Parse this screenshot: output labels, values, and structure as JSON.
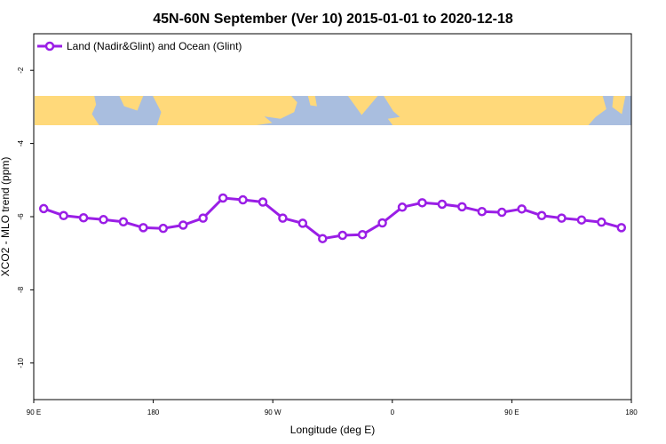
{
  "chart_data": {
    "type": "line",
    "title": "45N-60N September (Ver 10)   2015-01-01 to 2020-12-18",
    "xlabel": "Longitude (deg E)",
    "ylabel": "XCO2 - MLO trend (ppm)",
    "x_ticks": [
      {
        "value": 90,
        "label": "90 E"
      },
      {
        "value": 180,
        "label": "180"
      },
      {
        "value": 270,
        "label": "90 W"
      },
      {
        "value": 360,
        "label": "0"
      },
      {
        "value": 450,
        "label": "90 E"
      },
      {
        "value": 540,
        "label": "180"
      }
    ],
    "y_ticks": [
      {
        "value": -2,
        "label": "-2"
      },
      {
        "value": -4,
        "label": "-4"
      },
      {
        "value": -6,
        "label": "-6"
      },
      {
        "value": -8,
        "label": "-8"
      },
      {
        "value": -10,
        "label": "-10"
      }
    ],
    "xlim": [
      90,
      540
    ],
    "ylim": [
      -11,
      -1
    ],
    "grid": false,
    "legend_position": "top-left",
    "map_band": {
      "y_range": [
        -2.7,
        -3.5
      ],
      "land_color": "#ffd97a",
      "ocean_color": "#a9bedf"
    },
    "series": [
      {
        "name": "Land (Nadir&Glint) and Ocean (Glint)",
        "color": "#9a1ee6",
        "x": [
          97.5,
          112.5,
          127.5,
          142.5,
          157.5,
          172.5,
          187.5,
          202.5,
          217.5,
          232.5,
          247.5,
          262.5,
          277.5,
          292.5,
          307.5,
          322.5,
          337.5,
          352.5,
          367.5,
          382.5,
          397.5,
          412.5,
          427.5,
          442.5,
          457.5,
          472.5,
          487.5,
          502.5,
          517.5,
          532.5
        ],
        "values": [
          -5.78,
          -5.97,
          -6.03,
          -6.08,
          -6.14,
          -6.3,
          -6.32,
          -6.23,
          -6.04,
          -5.49,
          -5.54,
          -5.6,
          -6.04,
          -6.18,
          -6.6,
          -6.51,
          -6.49,
          -6.17,
          -5.74,
          -5.62,
          -5.66,
          -5.73,
          -5.86,
          -5.88,
          -5.79,
          -5.97,
          -6.04,
          -6.09,
          -6.15,
          -6.3
        ]
      }
    ]
  }
}
